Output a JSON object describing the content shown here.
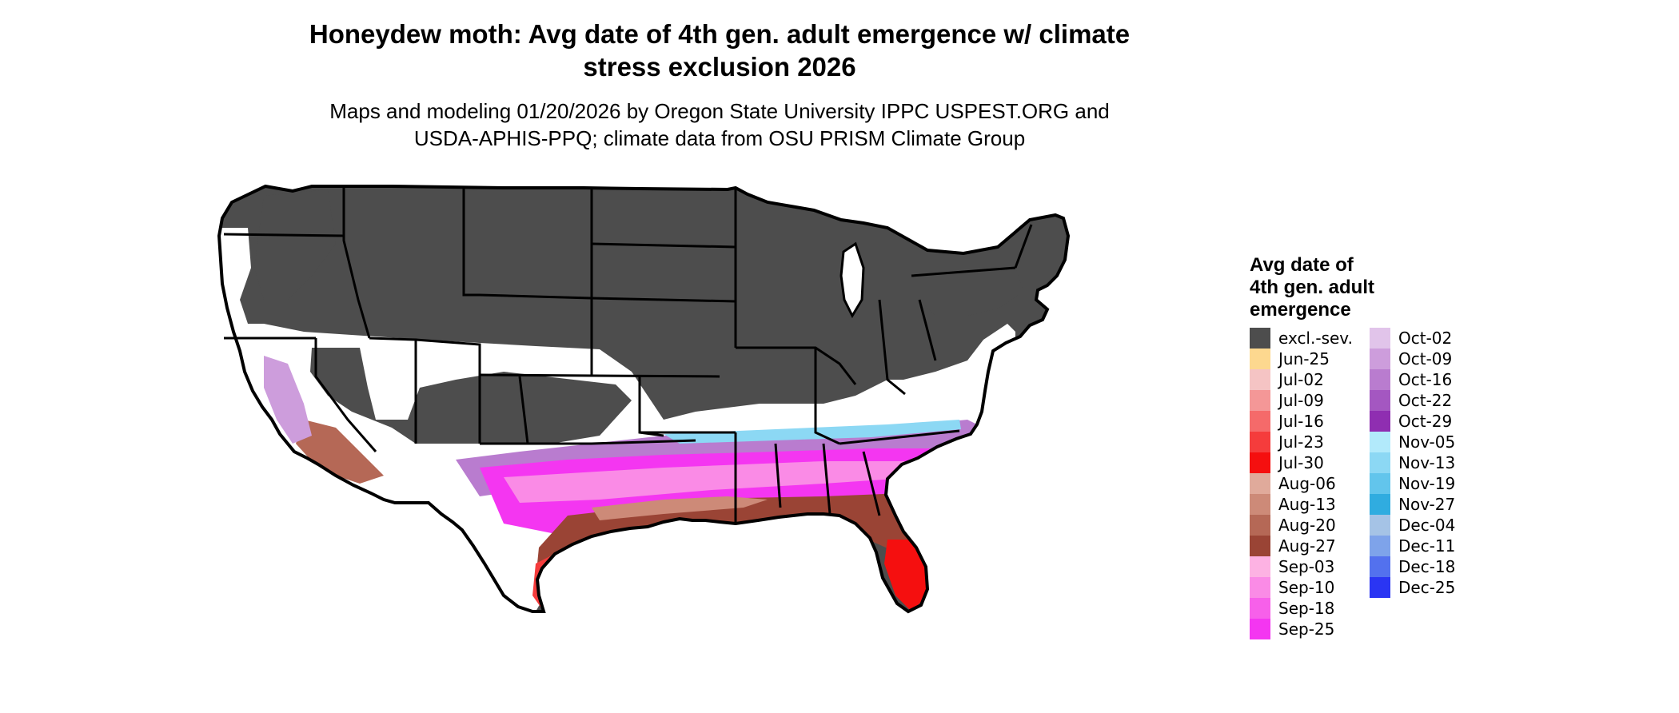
{
  "title": {
    "line1": "Honeydew moth: Avg date of 4th gen. adult emergence w/ climate",
    "line2": "stress exclusion 2026"
  },
  "subtitle": {
    "line1": "Maps and modeling 01/20/2026 by Oregon State University IPPC USPEST.ORG and",
    "line2": "USDA-APHIS-PPQ; climate data from OSU PRISM Climate Group"
  },
  "legend": {
    "title_line1": "Avg date of",
    "title_line2": "4th gen. adult",
    "title_line3": "emergence",
    "items": [
      {
        "label": "excl.-sev.",
        "color": "#4d4d4d"
      },
      {
        "label": "Jun-25",
        "color": "#fdd88f"
      },
      {
        "label": "Jul-02",
        "color": "#f5c4c4"
      },
      {
        "label": "Jul-09",
        "color": "#f49797"
      },
      {
        "label": "Jul-16",
        "color": "#f56a6a"
      },
      {
        "label": "Jul-23",
        "color": "#f53c3c"
      },
      {
        "label": "Jul-30",
        "color": "#f50f0f"
      },
      {
        "label": "Aug-06",
        "color": "#e0aa9b"
      },
      {
        "label": "Aug-13",
        "color": "#cd8a78"
      },
      {
        "label": "Aug-20",
        "color": "#b56856"
      },
      {
        "label": "Aug-27",
        "color": "#9a4435"
      },
      {
        "label": "Sep-03",
        "color": "#fdb2e3"
      },
      {
        "label": "Sep-10",
        "color": "#fa8be6"
      },
      {
        "label": "Sep-18",
        "color": "#f760ea"
      },
      {
        "label": "Sep-25",
        "color": "#f436f1"
      },
      {
        "label": "Oct-02",
        "color": "#e1c4ea"
      },
      {
        "label": "Oct-09",
        "color": "#cd9ddc"
      },
      {
        "label": "Oct-16",
        "color": "#b97ccf"
      },
      {
        "label": "Oct-22",
        "color": "#a457c1"
      },
      {
        "label": "Oct-29",
        "color": "#8f2eb1"
      },
      {
        "label": "Nov-05",
        "color": "#b2eafb"
      },
      {
        "label": "Nov-13",
        "color": "#8cd8f4"
      },
      {
        "label": "Nov-19",
        "color": "#62c5ec"
      },
      {
        "label": "Nov-27",
        "color": "#30ace0"
      },
      {
        "label": "Dec-04",
        "color": "#a5c3e6"
      },
      {
        "label": "Dec-11",
        "color": "#7ea3ea"
      },
      {
        "label": "Dec-18",
        "color": "#5371ee"
      },
      {
        "label": "Dec-25",
        "color": "#2a35f3"
      }
    ]
  },
  "map": {
    "region": "contiguous-united-states",
    "base_fill": "#4d4d4d",
    "land_fill": "#ffffff",
    "border_color": "#000000"
  }
}
